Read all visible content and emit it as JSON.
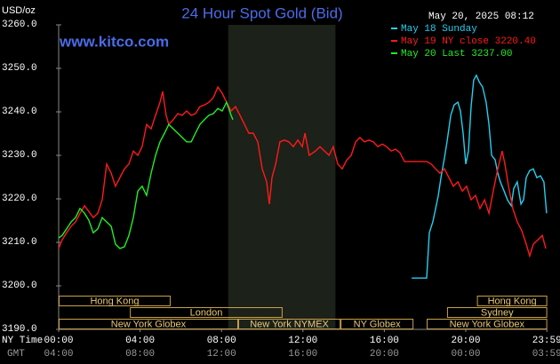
{
  "chart_data": {
    "type": "line",
    "title": "24 Hour Spot Gold (Bid)",
    "unit": "USD/oz",
    "timestamp": "May 20, 2025 08:12",
    "website": "www.kitco.com",
    "x_row_label": "NY Time",
    "x2_row_label": "GMT",
    "xlim": [
      0,
      24
    ],
    "ylim": [
      3190,
      3260
    ],
    "yticks": [
      {
        "value": 3190,
        "label": "3190.0"
      },
      {
        "value": 3200,
        "label": "3200.0"
      },
      {
        "value": 3210,
        "label": "3210.0"
      },
      {
        "value": 3220,
        "label": "3220.0"
      },
      {
        "value": 3230,
        "label": "3230.0"
      },
      {
        "value": 3240,
        "label": "3240.0"
      },
      {
        "value": 3250,
        "label": "3250.0"
      },
      {
        "value": 3260,
        "label": "3260.0"
      }
    ],
    "xticks": [
      {
        "value": 0,
        "label": "00:00"
      },
      {
        "value": 4,
        "label": "04:00"
      },
      {
        "value": 8,
        "label": "08:00"
      },
      {
        "value": 12,
        "label": "12:00"
      },
      {
        "value": 16,
        "label": "16:00"
      },
      {
        "value": 20,
        "label": "20:00"
      },
      {
        "value": 23.983,
        "label": "23:59"
      }
    ],
    "x2ticks": [
      {
        "value": 0,
        "label": "04:00"
      },
      {
        "value": 4,
        "label": "08:00"
      },
      {
        "value": 8,
        "label": "12:00"
      },
      {
        "value": 12,
        "label": "16:00"
      },
      {
        "value": 16,
        "label": "20:00"
      },
      {
        "value": 20,
        "label": "00:00"
      },
      {
        "value": 23.983,
        "label": "03:59"
      }
    ],
    "grid": false,
    "legend": "top-right",
    "shade": {
      "start": 8.33,
      "end": 13.6,
      "color": "#1c2119"
    },
    "sessions": [
      {
        "label": "Hong Kong",
        "row": 0,
        "start": 0,
        "end": 5.5
      },
      {
        "label": "Hong Kong",
        "row": 0,
        "start": 20.55,
        "end": 24
      },
      {
        "label": "London",
        "row": 1,
        "start": 3.5,
        "end": 11
      },
      {
        "label": "Sydney",
        "row": 1,
        "start": 19.08,
        "end": 24
      },
      {
        "label": "New York Globex",
        "row": 2,
        "start": 0,
        "end": 8.82
      },
      {
        "label": "New York NYMEX",
        "row": 2,
        "start": 8.82,
        "end": 13.85
      },
      {
        "label": "NY Globex",
        "row": 2,
        "start": 13.85,
        "end": 17.43
      },
      {
        "label": "New York Globex",
        "row": 2,
        "start": 18.08,
        "end": 24
      }
    ],
    "series": [
      {
        "name": "May 18 Sunday",
        "color": "#22d0f0",
        "x": [
          17.34,
          18.08,
          18.21,
          18.38,
          18.52,
          18.65,
          18.78,
          18.95,
          19.08,
          19.26,
          19.43,
          19.61,
          19.74,
          19.87,
          20.0,
          20.13,
          20.26,
          20.39,
          20.52,
          20.66,
          20.83,
          21.0,
          21.14,
          21.27,
          21.44,
          21.57,
          21.7,
          21.88,
          22.05,
          22.23,
          22.36,
          22.53,
          22.71,
          22.84,
          22.97,
          23.14,
          23.32,
          23.49,
          23.67,
          23.84,
          23.97
        ],
        "values": [
          3201.8,
          3201.8,
          3212.2,
          3214.7,
          3217.8,
          3220.8,
          3224.9,
          3229.4,
          3233.1,
          3239.2,
          3241.6,
          3242.2,
          3240.2,
          3235.1,
          3228.0,
          3231.0,
          3241.2,
          3247.3,
          3248.4,
          3246.9,
          3245.7,
          3242.2,
          3237.1,
          3230.0,
          3229.0,
          3225.9,
          3223.9,
          3221.8,
          3219.8,
          3218.4,
          3222.4,
          3223.9,
          3218.8,
          3219.8,
          3224.9,
          3226.5,
          3226.9,
          3224.9,
          3225.3,
          3223.9,
          3216.7
        ]
      },
      {
        "name": "May 19 NY close 3220.40",
        "color": "#ff1a1a",
        "x": [
          0,
          0.17,
          0.39,
          0.61,
          0.83,
          1.05,
          1.27,
          1.48,
          1.7,
          1.92,
          2.14,
          2.36,
          2.58,
          2.79,
          3.01,
          3.23,
          3.45,
          3.67,
          3.89,
          4.1,
          4.32,
          4.54,
          4.76,
          4.98,
          5.11,
          5.28,
          5.41,
          5.63,
          5.85,
          6.07,
          6.29,
          6.51,
          6.72,
          6.94,
          7.16,
          7.38,
          7.6,
          7.82,
          8.03,
          8.25,
          8.47,
          8.69,
          8.91,
          9.13,
          9.34,
          9.56,
          9.78,
          10.0,
          10.22,
          10.35,
          10.48,
          10.66,
          10.87,
          11.09,
          11.31,
          11.53,
          11.75,
          11.97,
          12.1,
          12.31,
          12.62,
          12.84,
          13.06,
          13.28,
          13.49,
          13.71,
          13.93,
          14.15,
          14.37,
          14.59,
          14.8,
          15.02,
          15.24,
          15.46,
          15.68,
          15.9,
          16.11,
          16.33,
          16.55,
          16.77,
          16.99,
          17.21,
          18.08,
          18.3,
          18.52,
          18.73,
          18.95,
          19.17,
          19.39,
          19.61,
          19.83,
          20.04,
          20.26,
          20.48,
          20.7,
          20.92,
          21.14,
          21.35,
          21.57,
          21.79,
          21.92,
          22.1,
          22.31,
          22.53,
          22.75,
          22.97,
          23.14,
          23.32,
          23.54,
          23.76,
          23.93
        ],
        "values": [
          3208.6,
          3210.6,
          3212.2,
          3213.7,
          3214.7,
          3216.7,
          3218.4,
          3217.1,
          3215.7,
          3216.7,
          3219.8,
          3228.0,
          3225.9,
          3222.9,
          3224.9,
          3226.9,
          3228.0,
          3231.0,
          3230.0,
          3232.0,
          3237.1,
          3236.1,
          3239.2,
          3242.2,
          3244.7,
          3239.2,
          3237.1,
          3238.2,
          3239.6,
          3239.2,
          3240.2,
          3239.2,
          3239.6,
          3241.2,
          3241.6,
          3242.2,
          3243.3,
          3245.7,
          3244.3,
          3242.2,
          3240.2,
          3241.2,
          3239.2,
          3237.1,
          3235.1,
          3235.1,
          3233.1,
          3226.9,
          3223.9,
          3218.8,
          3224.9,
          3228.0,
          3233.1,
          3233.5,
          3233.1,
          3232.0,
          3233.5,
          3232.0,
          3235.1,
          3230.0,
          3231.0,
          3232.0,
          3231.0,
          3230.0,
          3232.0,
          3228.0,
          3226.9,
          3228.9,
          3230.0,
          3233.1,
          3234.1,
          3233.1,
          3233.5,
          3233.1,
          3232.0,
          3232.6,
          3232.0,
          3231.0,
          3231.4,
          3230.6,
          3228.6,
          3228.6,
          3228.6,
          3228.0,
          3226.9,
          3225.9,
          3226.9,
          3224.9,
          3222.9,
          3223.9,
          3221.8,
          3222.9,
          3219.8,
          3220.8,
          3217.8,
          3219.8,
          3216.7,
          3221.8,
          3226.9,
          3231.0,
          3228.0,
          3222.9,
          3217.8,
          3214.7,
          3212.7,
          3209.6,
          3206.9,
          3209.6,
          3210.6,
          3211.6,
          3208.6
        ]
      },
      {
        "name": "May 20 Last 3237.00",
        "color": "#22ee22",
        "x": [
          0,
          0.17,
          0.39,
          0.61,
          0.83,
          1.05,
          1.27,
          1.48,
          1.7,
          1.92,
          2.14,
          2.36,
          2.58,
          2.79,
          3.01,
          3.23,
          3.45,
          3.67,
          3.89,
          4.1,
          4.32,
          4.54,
          4.76,
          4.98,
          5.2,
          5.41,
          5.63,
          5.85,
          6.07,
          6.29,
          6.51,
          6.72,
          6.94,
          7.16,
          7.38,
          7.6,
          7.82,
          8.03,
          8.25,
          8.47,
          8.56
        ],
        "values": [
          3211.0,
          3211.6,
          3213.1,
          3214.7,
          3215.7,
          3217.8,
          3216.7,
          3215.1,
          3212.2,
          3213.1,
          3215.7,
          3214.7,
          3213.7,
          3209.6,
          3208.6,
          3209.0,
          3211.6,
          3215.7,
          3221.8,
          3222.9,
          3220.8,
          3225.9,
          3230.0,
          3233.1,
          3235.1,
          3237.1,
          3236.1,
          3235.1,
          3234.1,
          3233.1,
          3233.1,
          3235.1,
          3237.1,
          3238.2,
          3239.2,
          3239.6,
          3240.8,
          3240.2,
          3242.2,
          3239.2,
          3238.2
        ]
      }
    ]
  }
}
